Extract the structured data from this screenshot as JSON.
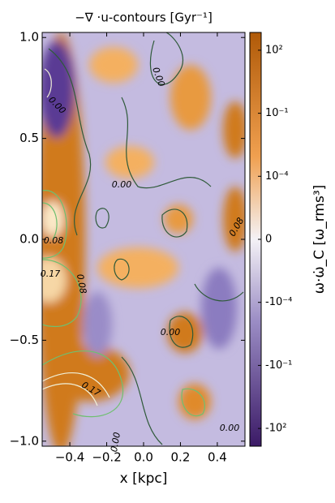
{
  "chart_data": {
    "type": "heatmap",
    "title": "−∇ ·u-contours [Gyr⁻¹]",
    "x_label": "x [kpc]",
    "colorbar_label": "ω·ω̇_C [ω_rms³]",
    "xlim": [
      -0.55,
      0.55
    ],
    "ylim": [
      -1.025,
      1.025
    ],
    "xticks": [
      {
        "value": -0.4,
        "label": "−0.4"
      },
      {
        "value": -0.2,
        "label": "−0.2"
      },
      {
        "value": 0,
        "label": "0.0"
      },
      {
        "value": 0.2,
        "label": "0.2"
      },
      {
        "value": 0.4,
        "label": "0.4"
      }
    ],
    "yticks": [
      {
        "value": 1,
        "label": "1.0"
      },
      {
        "value": 0.5,
        "label": "0.5"
      },
      {
        "value": 0,
        "label": "0.0"
      },
      {
        "value": -0.5,
        "label": "−0.5"
      },
      {
        "value": -1,
        "label": "−1.0"
      }
    ],
    "colorbar_scale": "symlog",
    "linthresh": 0.0001,
    "clim": [
      -700,
      700
    ],
    "colorbar_ticks": [
      {
        "value": 100,
        "label": "10²"
      },
      {
        "value": 0.1,
        "label": "10⁻¹"
      },
      {
        "value": 0.0001,
        "label": "10⁻⁴"
      },
      0,
      {
        "value": -0.0001,
        "label": "-10⁻⁴"
      },
      {
        "value": -0.1,
        "label": "-10⁻¹"
      },
      {
        "value": -100,
        "label": "-10²"
      }
    ],
    "colors": {
      "negative": "#3b1a66",
      "zero": "#f4f2f6",
      "positive": "#b05a08"
    },
    "annotations": [
      "0.00",
      "0.00",
      "0.00",
      "0.08",
      "0.17",
      "0.08",
      "0.00",
      "0.17",
      "0.00",
      "0.00",
      "0.08"
    ]
  }
}
